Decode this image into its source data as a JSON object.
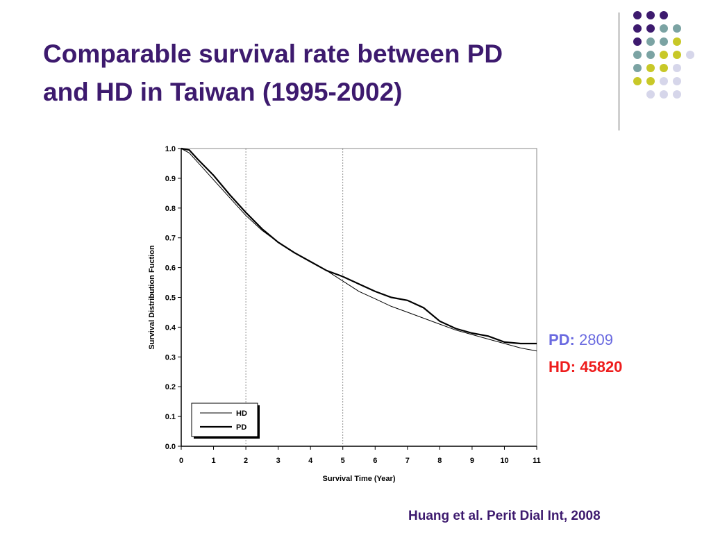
{
  "slide": {
    "title_line1": "Comparable survival rate between PD",
    "title_line2": "and HD in Taiwan (1995-2002)",
    "citation": "Huang et al. Perit Dial Int, 2008"
  },
  "patient_counts": [
    {
      "label": "PD:",
      "value": "2809",
      "color": "#6a6ae0"
    },
    {
      "label": "HD:",
      "value": "45820",
      "color": "#ee1c1c"
    }
  ],
  "decoration": {
    "dot_colors": {
      "purple": "#3d1a6e",
      "teal": "#7ba3a3",
      "yellow": "#c8c828",
      "lavender": "#d6d6ea"
    },
    "dot_grid": [
      [
        "purple",
        "purple",
        "purple",
        null
      ],
      [
        "purple",
        "purple",
        "teal",
        "teal"
      ],
      [
        "purple",
        "teal",
        "teal",
        "yellow"
      ],
      [
        "teal",
        "teal",
        "yellow",
        "yellow",
        "lavender"
      ],
      [
        "teal",
        "yellow",
        "yellow",
        "lavender"
      ],
      [
        "yellow",
        "yellow",
        "lavender",
        "lavender"
      ],
      [
        null,
        "lavender",
        "lavender",
        "lavender"
      ]
    ]
  },
  "chart_data": {
    "type": "line",
    "title": "",
    "xlabel": "Survival Time (Year)",
    "ylabel": "Survival Distribution Fuction",
    "xlim": [
      0,
      11
    ],
    "ylim": [
      0,
      1
    ],
    "xticks": [
      "0",
      "1",
      "2",
      "3",
      "4",
      "5",
      "6",
      "7",
      "8",
      "9",
      "10",
      "11"
    ],
    "yticks": [
      "0.0",
      "0.1",
      "0.2",
      "0.3",
      "0.4",
      "0.5",
      "0.6",
      "0.7",
      "0.8",
      "0.9",
      "1.0"
    ],
    "reference_lines_x": [
      2,
      5
    ],
    "legend_position": "bottom-left",
    "series": [
      {
        "name": "HD",
        "style": "thin",
        "x": [
          0,
          0.25,
          0.5,
          1,
          1.5,
          2,
          2.5,
          3,
          3.5,
          4,
          4.5,
          5,
          5.5,
          6,
          6.5,
          7,
          7.5,
          8,
          8.5,
          9,
          9.5,
          10,
          10.5,
          11
        ],
        "y": [
          1.0,
          0.985,
          0.955,
          0.895,
          0.835,
          0.775,
          0.725,
          0.685,
          0.65,
          0.62,
          0.59,
          0.555,
          0.52,
          0.495,
          0.47,
          0.45,
          0.43,
          0.41,
          0.39,
          0.375,
          0.36,
          0.345,
          0.33,
          0.32
        ]
      },
      {
        "name": "PD",
        "style": "bold",
        "x": [
          0,
          0.25,
          0.5,
          1,
          1.5,
          2,
          2.5,
          3,
          3.5,
          4,
          4.5,
          5,
          5.5,
          6,
          6.5,
          7,
          7.5,
          8,
          8.5,
          9,
          9.5,
          10,
          10.5,
          11
        ],
        "y": [
          1.0,
          0.995,
          0.965,
          0.91,
          0.845,
          0.785,
          0.73,
          0.685,
          0.65,
          0.62,
          0.59,
          0.57,
          0.545,
          0.52,
          0.5,
          0.49,
          0.465,
          0.42,
          0.395,
          0.38,
          0.37,
          0.35,
          0.345,
          0.345
        ]
      }
    ]
  }
}
